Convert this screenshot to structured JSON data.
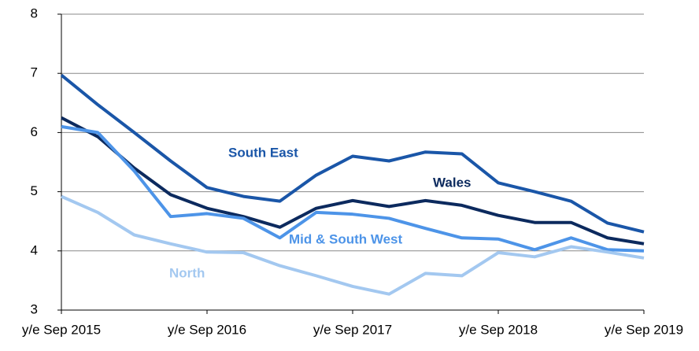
{
  "chart_data": {
    "type": "line",
    "categories": [
      "y/e Sep 2015",
      null,
      null,
      null,
      "y/e Sep 2016",
      null,
      null,
      null,
      "y/e Sep 2017",
      null,
      null,
      null,
      "y/e Sep 2018",
      null,
      null,
      null,
      "y/e Sep 2019"
    ],
    "series": [
      {
        "name": "South East",
        "color": "#1a56a8",
        "values": [
          6.97,
          6.47,
          6.0,
          5.52,
          5.07,
          4.92,
          4.84,
          5.28,
          5.6,
          5.52,
          5.67,
          5.64,
          5.15,
          5.0,
          4.84,
          4.47,
          4.32
        ]
      },
      {
        "name": "Wales",
        "color": "#0c2a5e",
        "values": [
          6.25,
          5.93,
          5.4,
          4.95,
          4.72,
          4.58,
          4.4,
          4.72,
          4.85,
          4.75,
          4.85,
          4.77,
          4.6,
          4.48,
          4.48,
          4.22,
          4.12
        ]
      },
      {
        "name": "Mid & South West",
        "color": "#4d94e8",
        "values": [
          6.1,
          6.0,
          5.35,
          4.58,
          4.63,
          4.55,
          4.22,
          4.65,
          4.62,
          4.55,
          4.38,
          4.22,
          4.2,
          4.02,
          4.22,
          4.02,
          4.0
        ]
      },
      {
        "name": "North",
        "color": "#a3c8f0",
        "values": [
          4.92,
          4.65,
          4.27,
          4.12,
          3.98,
          3.97,
          3.75,
          3.58,
          3.4,
          3.27,
          3.62,
          3.58,
          3.97,
          3.9,
          4.07,
          3.98,
          3.88
        ]
      }
    ],
    "ylim": [
      3,
      8
    ],
    "yticks": [
      3,
      4,
      5,
      6,
      7,
      8
    ],
    "grid": true
  }
}
